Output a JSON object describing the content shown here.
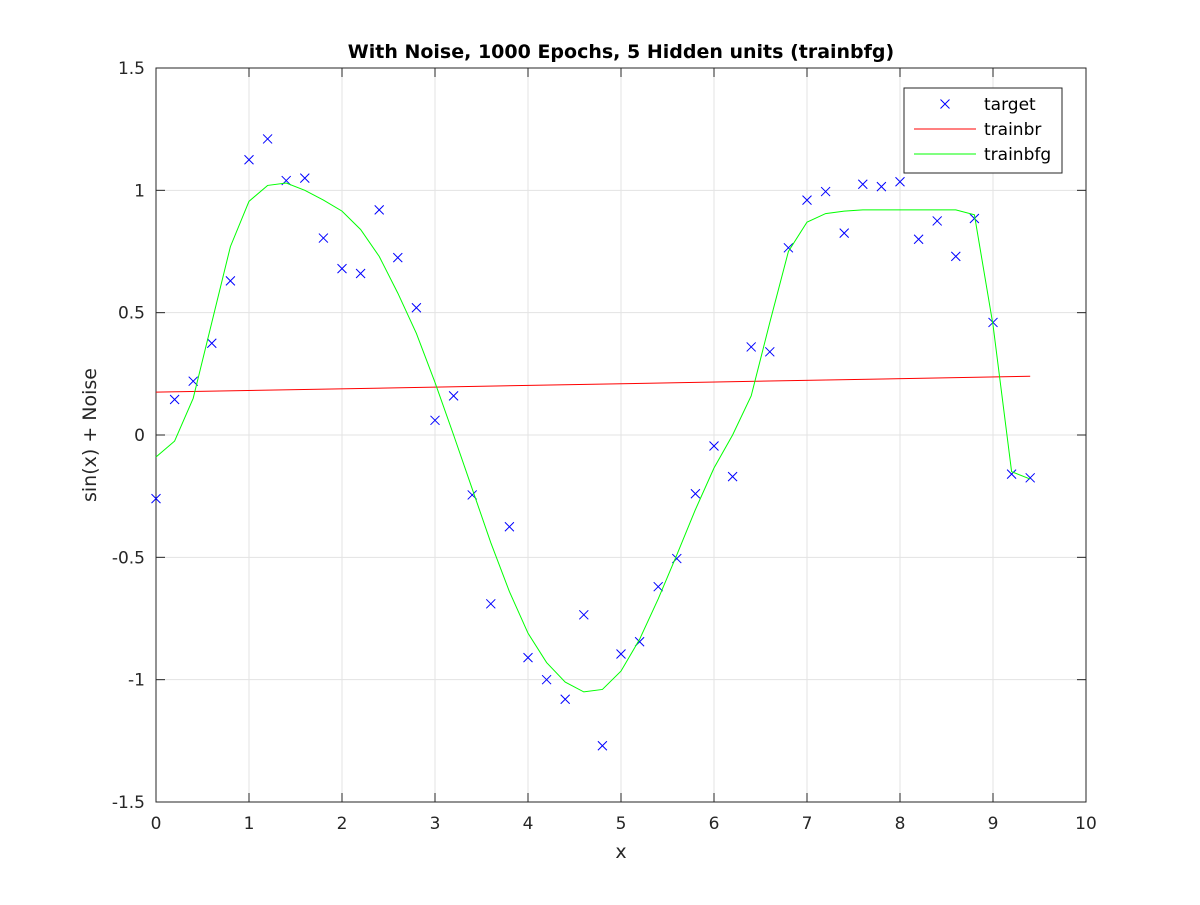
{
  "chart_data": {
    "type": "line",
    "title": "With Noise, 1000 Epochs, 5 Hidden units (trainbfg)",
    "xlabel": "x",
    "ylabel": "sin(x) + Noise",
    "xlim": [
      0,
      10
    ],
    "ylim": [
      -1.5,
      1.5
    ],
    "xticks": [
      "0",
      "1",
      "2",
      "3",
      "4",
      "5",
      "6",
      "7",
      "8",
      "9",
      "10"
    ],
    "yticks": [
      "-1.5",
      "-1",
      "-0.5",
      "0",
      "0.5",
      "1",
      "1.5"
    ],
    "grid": true,
    "legend_position": "top-right",
    "series": [
      {
        "name": "target",
        "kind": "scatter",
        "marker": "x",
        "color": "#0000ff",
        "x": [
          0,
          0.2,
          0.4,
          0.6,
          0.8,
          1.0,
          1.2,
          1.4,
          1.6,
          1.8,
          2.0,
          2.2,
          2.4,
          2.6,
          2.8,
          3.0,
          3.2,
          3.4,
          3.6,
          3.8,
          4.0,
          4.2,
          4.4,
          4.6,
          4.8,
          5.0,
          5.2,
          5.4,
          5.6,
          5.8,
          6.0,
          6.2,
          6.4,
          6.6,
          6.8,
          7.0,
          7.2,
          7.4,
          7.6,
          7.8,
          8.0,
          8.2,
          8.4,
          8.6,
          8.8,
          9.0,
          9.2,
          9.4
        ],
        "y": [
          -0.26,
          0.145,
          0.22,
          0.375,
          0.63,
          1.125,
          1.21,
          1.04,
          1.05,
          0.805,
          0.68,
          0.66,
          0.92,
          0.725,
          0.52,
          0.06,
          0.16,
          -0.245,
          -0.69,
          -0.375,
          -0.91,
          -1.0,
          -1.08,
          -0.735,
          -1.27,
          -0.895,
          -0.845,
          -0.62,
          -0.505,
          -0.24,
          -0.045,
          -0.17,
          0.36,
          0.34,
          0.765,
          0.96,
          0.995,
          0.825,
          1.025,
          1.015,
          1.035,
          0.8,
          0.875,
          0.73,
          0.885,
          0.46,
          -0.16,
          -0.175
        ]
      },
      {
        "name": "trainbr",
        "kind": "line",
        "color": "#ff0000",
        "x": [
          0,
          9.4
        ],
        "y": [
          0.175,
          0.24
        ]
      },
      {
        "name": "trainbfg",
        "kind": "line",
        "color": "#00ff00",
        "x": [
          0,
          0.2,
          0.4,
          0.6,
          0.8,
          1.0,
          1.2,
          1.4,
          1.6,
          1.8,
          2.0,
          2.2,
          2.4,
          2.6,
          2.8,
          3.0,
          3.2,
          3.4,
          3.6,
          3.8,
          4.0,
          4.2,
          4.4,
          4.6,
          4.8,
          5.0,
          5.2,
          5.4,
          5.6,
          5.8,
          6.0,
          6.2,
          6.4,
          6.6,
          6.8,
          7.0,
          7.2,
          7.4,
          7.6,
          7.8,
          8.0,
          8.2,
          8.4,
          8.6,
          8.8,
          9.0,
          9.2,
          9.4
        ],
        "y": [
          -0.09,
          -0.025,
          0.15,
          0.46,
          0.77,
          0.955,
          1.02,
          1.03,
          1.0,
          0.96,
          0.915,
          0.84,
          0.73,
          0.58,
          0.415,
          0.215,
          0.0,
          -0.22,
          -0.44,
          -0.64,
          -0.81,
          -0.93,
          -1.01,
          -1.05,
          -1.04,
          -0.965,
          -0.835,
          -0.67,
          -0.49,
          -0.305,
          -0.135,
          0.0,
          0.16,
          0.46,
          0.75,
          0.87,
          0.905,
          0.915,
          0.92,
          0.92,
          0.92,
          0.92,
          0.92,
          0.92,
          0.9,
          0.45,
          -0.15,
          -0.18
        ]
      }
    ]
  }
}
